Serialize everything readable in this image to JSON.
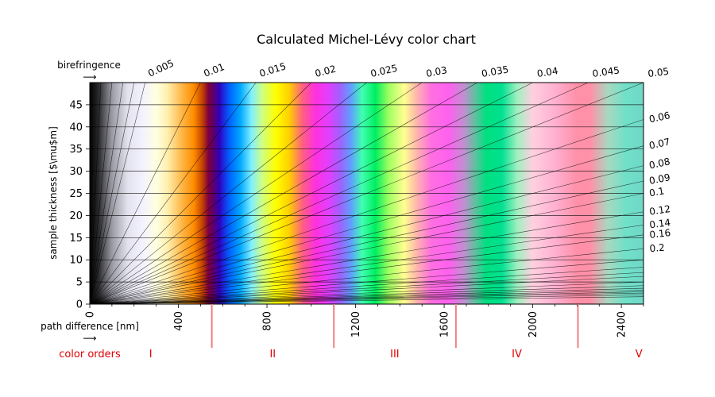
{
  "chart_data": {
    "type": "heatmap",
    "title": "Calculated Michel-Lévy color chart",
    "xlabel": "path difference [nm]",
    "ylabel": "sample thickness [$\\mu$m]",
    "top_axis_label": "birefringence",
    "order_label": "color orders",
    "xlim": [
      0,
      2500
    ],
    "ylim": [
      0,
      50
    ],
    "x_ticks": [
      {
        "value": 0,
        "label": "0"
      },
      {
        "value": 400,
        "label": "400"
      },
      {
        "value": 800,
        "label": "800"
      },
      {
        "value": 1200,
        "label": "1200"
      },
      {
        "value": 1600,
        "label": "1600"
      },
      {
        "value": 2000,
        "label": "2000"
      },
      {
        "value": 2400,
        "label": "2400"
      }
    ],
    "y_ticks": [
      {
        "value": 0,
        "label": "0"
      },
      {
        "value": 5,
        "label": "5"
      },
      {
        "value": 10,
        "label": "10"
      },
      {
        "value": 15,
        "label": "15"
      },
      {
        "value": 20,
        "label": "20"
      },
      {
        "value": 25,
        "label": "25"
      },
      {
        "value": 30,
        "label": "30"
      },
      {
        "value": 35,
        "label": "35"
      },
      {
        "value": 40,
        "label": "40"
      },
      {
        "value": 45,
        "label": "45"
      }
    ],
    "birefringence_top": [
      {
        "value": 0.005,
        "label": "0.005"
      },
      {
        "value": 0.01,
        "label": "0.01"
      },
      {
        "value": 0.015,
        "label": "0.015"
      },
      {
        "value": 0.02,
        "label": "0.02"
      },
      {
        "value": 0.025,
        "label": "0.025"
      },
      {
        "value": 0.03,
        "label": "0.03"
      },
      {
        "value": 0.035,
        "label": "0.035"
      },
      {
        "value": 0.04,
        "label": "0.04"
      },
      {
        "value": 0.045,
        "label": "0.045"
      },
      {
        "value": 0.05,
        "label": "0.05"
      }
    ],
    "birefringence_right": [
      {
        "value": 0.06,
        "label": "0.06"
      },
      {
        "value": 0.07,
        "label": "0.07"
      },
      {
        "value": 0.08,
        "label": "0.08"
      },
      {
        "value": 0.09,
        "label": "0.09"
      },
      {
        "value": 0.1,
        "label": "0.1"
      },
      {
        "value": 0.12,
        "label": "0.12"
      },
      {
        "value": 0.14,
        "label": "0.14"
      },
      {
        "value": 0.16,
        "label": "0.16"
      },
      {
        "value": 0.2,
        "label": "0.2"
      }
    ],
    "birefringence_unlabeled": [
      0.001,
      0.002,
      0.003,
      0.004,
      0.25,
      0.3,
      0.35,
      0.4,
      0.5,
      0.6,
      0.7,
      0.8,
      0.9,
      1.0,
      1.2,
      1.5
    ],
    "order_boundaries": [
      551,
      1102,
      1653,
      2204
    ],
    "orders": [
      {
        "label": "I",
        "center": 275
      },
      {
        "label": "II",
        "center": 826
      },
      {
        "label": "III",
        "center": 1377
      },
      {
        "label": "IV",
        "center": 1928
      },
      {
        "label": "V",
        "center": 2479
      }
    ],
    "color_bands": [
      {
        "x": 0,
        "color": "#000000"
      },
      {
        "x": 40,
        "color": "#2a2a2e"
      },
      {
        "x": 100,
        "color": "#9a9aa4"
      },
      {
        "x": 170,
        "color": "#e2e2ee"
      },
      {
        "x": 240,
        "color": "#f4f2ff"
      },
      {
        "x": 300,
        "color": "#ffffe0"
      },
      {
        "x": 350,
        "color": "#fff0b0"
      },
      {
        "x": 420,
        "color": "#ffb340"
      },
      {
        "x": 470,
        "color": "#ff8c00"
      },
      {
        "x": 510,
        "color": "#c04000"
      },
      {
        "x": 535,
        "color": "#800040"
      },
      {
        "x": 560,
        "color": "#5a006e"
      },
      {
        "x": 585,
        "color": "#3000c0"
      },
      {
        "x": 630,
        "color": "#0060ff"
      },
      {
        "x": 680,
        "color": "#00a8ff"
      },
      {
        "x": 730,
        "color": "#80f0ff"
      },
      {
        "x": 780,
        "color": "#d0ff80"
      },
      {
        "x": 840,
        "color": "#ffff00"
      },
      {
        "x": 900,
        "color": "#ffd000"
      },
      {
        "x": 960,
        "color": "#ff6080"
      },
      {
        "x": 1020,
        "color": "#ff30e0"
      },
      {
        "x": 1080,
        "color": "#e040ff"
      },
      {
        "x": 1130,
        "color": "#a060ff"
      },
      {
        "x": 1180,
        "color": "#60a0ff"
      },
      {
        "x": 1230,
        "color": "#40ffb0"
      },
      {
        "x": 1290,
        "color": "#00ee60"
      },
      {
        "x": 1350,
        "color": "#a0ff60"
      },
      {
        "x": 1420,
        "color": "#ffff90"
      },
      {
        "x": 1480,
        "color": "#ffb0b0"
      },
      {
        "x": 1540,
        "color": "#ff70e0"
      },
      {
        "x": 1620,
        "color": "#ff60f0"
      },
      {
        "x": 1690,
        "color": "#c090d0"
      },
      {
        "x": 1740,
        "color": "#60c0a0"
      },
      {
        "x": 1790,
        "color": "#00e080"
      },
      {
        "x": 1860,
        "color": "#00e090"
      },
      {
        "x": 1930,
        "color": "#a0f0c0"
      },
      {
        "x": 2000,
        "color": "#ffd0e0"
      },
      {
        "x": 2100,
        "color": "#ffb0d0"
      },
      {
        "x": 2200,
        "color": "#ff90a8"
      },
      {
        "x": 2260,
        "color": "#ff90a8"
      },
      {
        "x": 2340,
        "color": "#a8d8c0"
      },
      {
        "x": 2420,
        "color": "#70e0c8"
      },
      {
        "x": 2500,
        "color": "#70d8c8"
      }
    ],
    "colors": {
      "order_line": "#f08080",
      "order_text": "#e00000",
      "iso_line": "#000000"
    }
  }
}
